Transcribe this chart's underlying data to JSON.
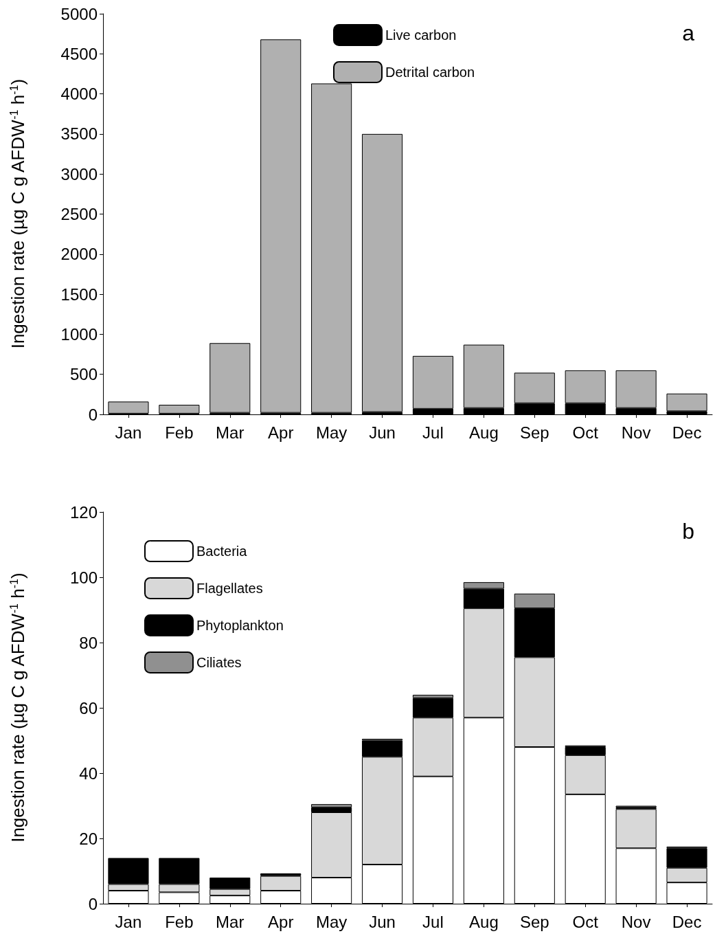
{
  "chart_data": [
    {
      "type": "bar",
      "stacked": true,
      "categories": [
        "Jan",
        "Feb",
        "Mar",
        "Apr",
        "May",
        "Jun",
        "Jul",
        "Aug",
        "Sep",
        "Oct",
        "Nov",
        "Dec"
      ],
      "ylabel": "Ingestion rate (µg C g AFDW$^{-1}$ h$^{-1}$)",
      "ylim": [
        0,
        5000
      ],
      "yticks": [
        0,
        500,
        1000,
        1500,
        2000,
        2500,
        3000,
        3500,
        4000,
        4500,
        5000
      ],
      "grid": false,
      "legend": "top",
      "annotations": [
        "a"
      ],
      "series": [
        {
          "name": "Live carbon",
          "color": "#000000",
          "values": [
            10,
            10,
            20,
            20,
            20,
            30,
            70,
            80,
            140,
            140,
            80,
            40
          ]
        },
        {
          "name": "Detrital carbon",
          "color": "#b0b0b0",
          "values": [
            150,
            110,
            870,
            4660,
            4110,
            3470,
            660,
            790,
            380,
            410,
            470,
            220
          ]
        }
      ]
    },
    {
      "type": "bar",
      "stacked": true,
      "categories": [
        "Jan",
        "Feb",
        "Mar",
        "Apr",
        "May",
        "Jun",
        "Jul",
        "Aug",
        "Sep",
        "Oct",
        "Nov",
        "Dec"
      ],
      "ylabel": "Ingestion rate (µg C g AFDW$^{-1}$ h$^{-1}$)",
      "ylim": [
        0,
        120
      ],
      "yticks": [
        0,
        20,
        40,
        60,
        80,
        100,
        120
      ],
      "grid": false,
      "legend": "top left",
      "annotations": [
        "b"
      ],
      "series": [
        {
          "name": "Bacteria",
          "color": "#ffffff",
          "values": [
            4,
            3.5,
            2.5,
            4,
            8,
            12,
            39,
            57,
            48,
            33.5,
            17,
            6.5
          ]
        },
        {
          "name": "Flagellates",
          "color": "#d8d8d8",
          "values": [
            2,
            2.5,
            2,
            4.5,
            20,
            33,
            18,
            33.5,
            27.5,
            12,
            12,
            4.5
          ]
        },
        {
          "name": "Phytoplankton",
          "color": "#000000",
          "values": [
            8,
            8,
            3.5,
            0.8,
            1.5,
            5,
            6,
            6,
            15,
            2.5,
            0.5,
            6
          ]
        },
        {
          "name": "Ciliates",
          "color": "#909090",
          "values": [
            null,
            null,
            null,
            null,
            1,
            0.5,
            1,
            2,
            4.5,
            0.5,
            0.5,
            0.5
          ]
        }
      ]
    }
  ]
}
